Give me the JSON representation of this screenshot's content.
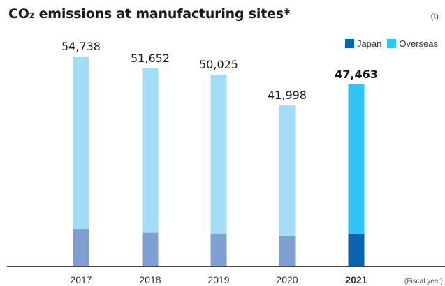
{
  "header": {
    "title_main": "CO",
    "title_sub": "2",
    "title_rest": " emissions at manufacturing sites*",
    "unit": "(t)"
  },
  "legend": {
    "items": [
      {
        "label": "Japan",
        "color": "#0a63b0"
      },
      {
        "label": "Overseas",
        "color": "#2ec4f3"
      }
    ]
  },
  "chart_data": {
    "type": "bar",
    "stacked": true,
    "categories": [
      "2017",
      "2018",
      "2019",
      "2020",
      "2021"
    ],
    "highlight_index": 4,
    "totals": [
      54738,
      51652,
      50025,
      41998,
      47463
    ],
    "total_labels": [
      "54,738",
      "51,652",
      "50,025",
      "41,998",
      "47,463"
    ],
    "series": [
      {
        "name": "Japan",
        "values": [
          9700,
          8800,
          8500,
          7900,
          8400
        ],
        "color": "#7f9fd3",
        "highlight_color": "#0a63b0"
      },
      {
        "name": "Overseas",
        "values": [
          45038,
          42852,
          41525,
          34098,
          39063
        ],
        "color": "#a2dcf5",
        "highlight_color": "#2ec4f3"
      }
    ],
    "ylim": [
      0,
      60000
    ],
    "x_axis_note": "(Fiscal year)",
    "grid": false
  }
}
